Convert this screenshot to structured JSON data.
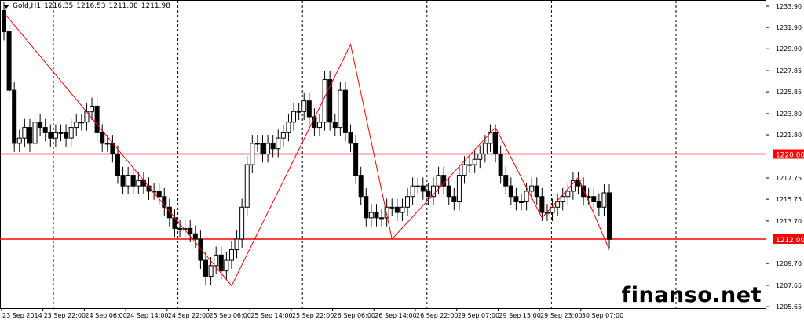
{
  "header": {
    "symbol": "Gold,H1",
    "open": "1216.35",
    "high": "1216.53",
    "low": "1211.08",
    "close": "1211.98"
  },
  "watermark": "finanso.net",
  "colors": {
    "background": "#ffffff",
    "candle_up": "#ffffff",
    "candle_down": "#000000",
    "zigzag": "#ff0000",
    "level_line": "#ff0000",
    "grid": "#000000"
  },
  "chart_data": {
    "type": "candlestick",
    "price_axis": {
      "labels": [
        "1233.90",
        "1231.90",
        "1229.90",
        "1227.85",
        "1225.85",
        "1223.80",
        "1221.80",
        "1217.75",
        "1215.75",
        "1213.70",
        "1209.70",
        "1207.65",
        "1205.65"
      ],
      "range": [
        1205.65,
        1233.9
      ]
    },
    "time_axis": {
      "labels": [
        "23 Sep 2014",
        "23 Sep 22:00",
        "24 Sep 06:00",
        "24 Sep 14:00",
        "24 Sep 22:00",
        "25 Sep 06:00",
        "25 Sep 14:00",
        "25 Sep 22:00",
        "26 Sep 06:00",
        "26 Sep 14:00",
        "26 Sep 22:00",
        "29 Sep 07:00",
        "29 Sep 15:00",
        "29 Sep 23:00",
        "30 Sep 07:00"
      ],
      "bars_per_label": 8
    },
    "levels": [
      {
        "price": 1220.0,
        "label": "1220.00"
      },
      {
        "price": 1212.0,
        "label": "1212.00"
      }
    ],
    "closes": [
      1231.5,
      1226,
      1221,
      1221.5,
      1222.5,
      1221,
      1223,
      1222.5,
      1222,
      1221.5,
      1222,
      1222,
      1221.5,
      1222.5,
      1223,
      1223,
      1224,
      1224.5,
      1222,
      1221,
      1221,
      1220,
      1218,
      1217,
      1218,
      1217,
      1217.5,
      1217,
      1216.5,
      1216.5,
      1216,
      1215,
      1214,
      1213,
      1213,
      1213,
      1212.5,
      1212,
      1210,
      1208.5,
      1209.5,
      1210.5,
      1209,
      1210,
      1211,
      1212,
      1215,
      1219,
      1221,
      1221,
      1220,
      1221,
      1220.5,
      1221.5,
      1222,
      1223,
      1224,
      1224,
      1225,
      1223.5,
      1222.5,
      1223,
      1227,
      1223,
      1222.5,
      1226,
      1222,
      1221,
      1218,
      1216,
      1214,
      1214.5,
      1214,
      1214,
      1215,
      1215,
      1214.5,
      1215,
      1216,
      1217,
      1217,
      1216.5,
      1216,
      1217,
      1218,
      1217,
      1216,
      1215.5,
      1218,
      1219,
      1219,
      1219.5,
      1220,
      1221,
      1222,
      1220,
      1218,
      1217,
      1216,
      1215.5,
      1215.5,
      1216.5,
      1217,
      1216,
      1214.5,
      1214.5,
      1215,
      1215.5,
      1216,
      1216.5,
      1217.5,
      1217,
      1216,
      1216,
      1215.5,
      1215,
      1216.35,
      1211.98
    ],
    "first_open": 1233.5,
    "zigzag": [
      {
        "bar": 0,
        "price": 1233.3
      },
      {
        "bar": 44,
        "price": 1207.6
      },
      {
        "bar": 67,
        "price": 1230.3
      },
      {
        "bar": 75,
        "price": 1212.0
      },
      {
        "bar": 95,
        "price": 1222.5
      },
      {
        "bar": 104,
        "price": 1214.0
      },
      {
        "bar": 111,
        "price": 1217.8
      },
      {
        "bar": 117,
        "price": 1211.0
      }
    ],
    "grid": "vertical dashed"
  }
}
